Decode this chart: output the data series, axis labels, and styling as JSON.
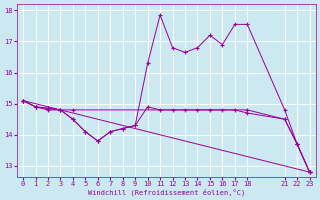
{
  "xlabel": "Windchill (Refroidissement éolien,°C)",
  "bg_color": "#cce8f0",
  "line_color": "#990099",
  "grid_color": "#ffffff",
  "ylim": [
    12.65,
    18.2
  ],
  "xlim": [
    -0.5,
    23.5
  ],
  "yticks": [
    13,
    14,
    15,
    16,
    17,
    18
  ],
  "xticks": [
    0,
    1,
    2,
    3,
    4,
    5,
    6,
    7,
    8,
    9,
    10,
    11,
    12,
    13,
    14,
    15,
    16,
    17,
    18,
    21,
    22,
    23
  ],
  "lines": [
    {
      "x": [
        0,
        1,
        2,
        3,
        4,
        5,
        6,
        7,
        8,
        9,
        10,
        11,
        12,
        13,
        14,
        15,
        16,
        17,
        18,
        21,
        22,
        23
      ],
      "y": [
        15.1,
        14.9,
        14.8,
        14.8,
        14.5,
        14.1,
        13.8,
        14.1,
        14.2,
        14.3,
        14.9,
        14.8,
        14.8,
        14.8,
        14.8,
        14.8,
        14.8,
        14.8,
        14.7,
        14.5,
        13.7,
        12.8
      ]
    },
    {
      "x": [
        0,
        1,
        2,
        3,
        4,
        5,
        6,
        7,
        8,
        9,
        10,
        11,
        12,
        13,
        14,
        15,
        16,
        17,
        18,
        21,
        22,
        23
      ],
      "y": [
        15.1,
        14.9,
        14.85,
        14.8,
        14.5,
        14.1,
        13.8,
        14.1,
        14.2,
        14.3,
        16.3,
        17.85,
        16.8,
        16.65,
        16.8,
        17.2,
        16.9,
        17.55,
        17.55,
        14.8,
        13.7,
        12.8
      ]
    },
    {
      "x": [
        0,
        23
      ],
      "y": [
        15.1,
        12.8
      ]
    },
    {
      "x": [
        0,
        1,
        2,
        3,
        4,
        18,
        21,
        22,
        23
      ],
      "y": [
        15.1,
        14.9,
        14.85,
        14.8,
        14.8,
        14.8,
        14.5,
        13.7,
        12.8
      ]
    }
  ]
}
